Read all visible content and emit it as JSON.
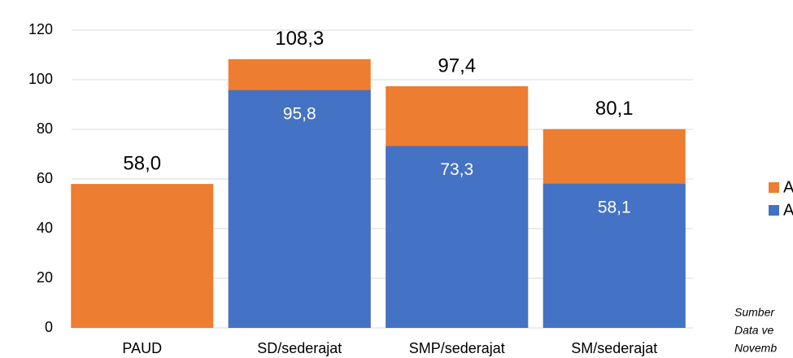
{
  "chart_data": {
    "type": "bar",
    "categories": [
      "PAUD",
      "SD/sederajat",
      "SMP/sederajat",
      "SM/sederajat"
    ],
    "series": [
      {
        "name": "APK",
        "color": "#ed7d31",
        "values": [
          58.0,
          108.3,
          97.4,
          80.1
        ],
        "value_labels": [
          "58,0",
          "108,3",
          "97,4",
          "80,1"
        ]
      },
      {
        "name": "APM",
        "color": "#4472c4",
        "values": [
          null,
          95.8,
          73.3,
          58.1
        ],
        "value_labels": [
          null,
          "95,8",
          "73,3",
          "58,1"
        ]
      }
    ],
    "ylim": [
      0,
      120
    ],
    "yticks": [
      0,
      20,
      40,
      60,
      80,
      100,
      120
    ],
    "grid": true,
    "legend": "right",
    "annotation": [
      "Sumber",
      "Data ve",
      "Novemb"
    ]
  }
}
